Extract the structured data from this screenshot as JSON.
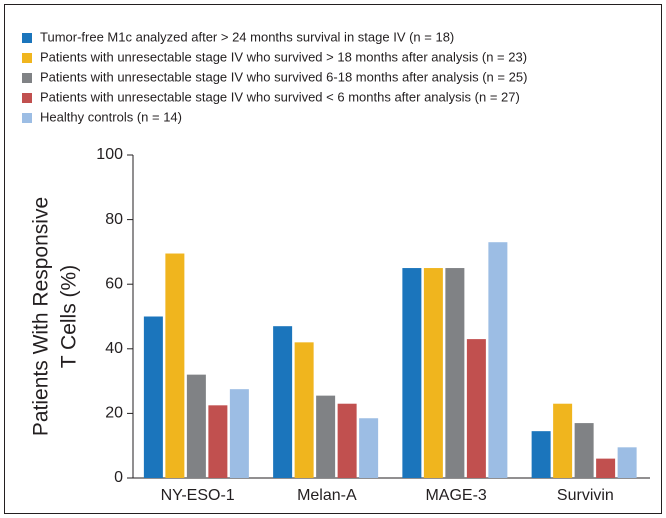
{
  "chart_data": {
    "type": "bar",
    "y_label": [
      "Patients With Responsive",
      "T Cells (%)"
    ],
    "categories": [
      "NY-ESO-1",
      "Melan-A",
      "MAGE-3",
      "Survivin"
    ],
    "series": [
      {
        "name": "Tumor-free M1c analyzed after > 24 months survival in stage IV (n = 18)",
        "color": "#1b75bc",
        "values": [
          50,
          47,
          65,
          14.5
        ]
      },
      {
        "name": "Patients with unresectable stage IV who survived > 18 months after analysis (n = 23)",
        "color": "#f0b51e",
        "values": [
          69.5,
          42,
          65,
          23
        ]
      },
      {
        "name": "Patients with unresectable stage IV who survived 6-18 months after analysis (n = 25)",
        "color": "#808285",
        "values": [
          32,
          25.5,
          65,
          17
        ]
      },
      {
        "name": "Patients with unresectable stage IV who survived < 6 months after analysis (n = 27)",
        "color": "#c1504f",
        "values": [
          22.5,
          23,
          43,
          6
        ]
      },
      {
        "name": "Healthy controls (n = 14)",
        "color": "#9cbde4",
        "values": [
          27.5,
          18.5,
          73,
          9.5
        ]
      }
    ],
    "ylim": [
      0,
      100
    ],
    "yticks": [
      0,
      20,
      40,
      60,
      80,
      100
    ]
  }
}
